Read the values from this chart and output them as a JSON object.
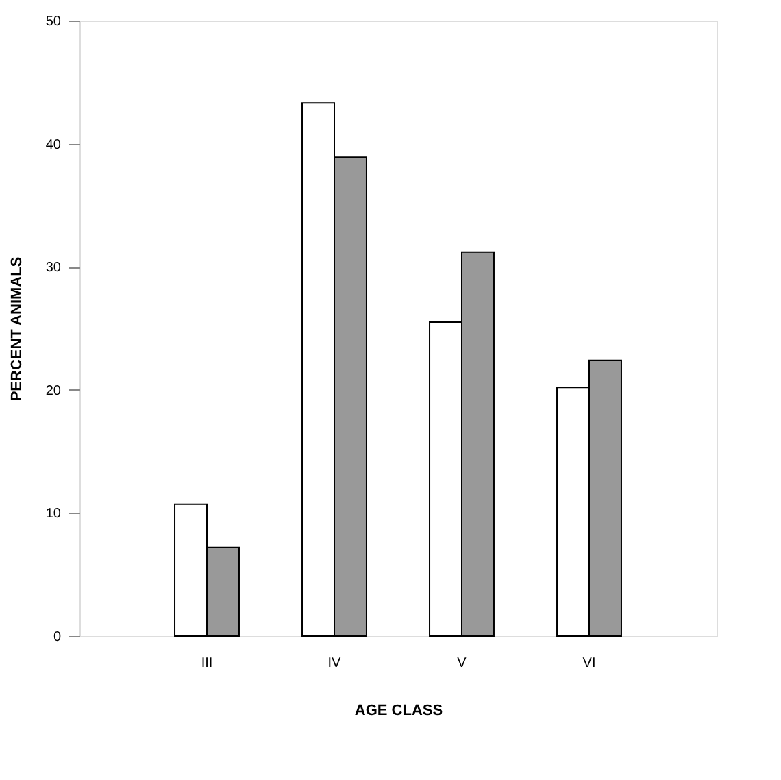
{
  "chart_data": {
    "type": "bar",
    "xlabel": "AGE CLASS",
    "ylabel": "PERCENT ANIMALS",
    "categories": [
      "III",
      "IV",
      "V",
      "VI"
    ],
    "series": [
      {
        "color": "#ffffff",
        "values": [
          10.7,
          43.3,
          25.5,
          20.2
        ]
      },
      {
        "color": "#999999",
        "values": [
          7.2,
          38.9,
          31.2,
          22.4
        ]
      }
    ],
    "ylim": [
      0,
      50
    ],
    "yticks": [
      0,
      10,
      20,
      30,
      40,
      50
    ],
    "grid": false,
    "legend": false
  }
}
